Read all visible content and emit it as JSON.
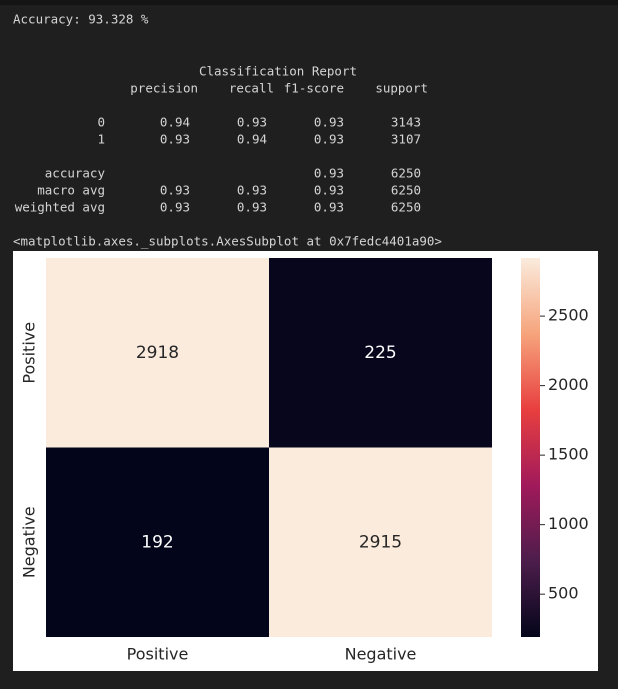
{
  "accuracy_line": "Accuracy: 93.328 %",
  "report": {
    "title": "Classification Report",
    "columns": [
      "precision",
      "recall",
      "f1-score",
      "support"
    ],
    "rows": [
      {
        "label": "0",
        "cells": {
          "precision": "0.94",
          "recall": "0.93",
          "f1-score": "0.93",
          "support": "3143"
        }
      },
      {
        "label": "1",
        "cells": {
          "precision": "0.93",
          "recall": "0.94",
          "f1-score": "0.93",
          "support": "3107"
        }
      },
      {
        "label": "accuracy",
        "cells": {
          "f1-score": "0.93",
          "support": "6250"
        }
      },
      {
        "label": "macro avg",
        "cells": {
          "precision": "0.93",
          "recall": "0.93",
          "f1-score": "0.93",
          "support": "6250"
        }
      },
      {
        "label": "weighted avg",
        "cells": {
          "precision": "0.93",
          "recall": "0.93",
          "f1-score": "0.93",
          "support": "6250"
        }
      }
    ]
  },
  "repr": "<matplotlib.axes._subplots.AxesSubplot at 0x7fedc4401a90>",
  "chart_data": {
    "type": "heatmap",
    "x_categories": [
      "Positive",
      "Negative"
    ],
    "y_categories": [
      "Positive",
      "Negative"
    ],
    "values": [
      [
        2918,
        225
      ],
      [
        192,
        2915
      ]
    ],
    "colormap": "rocket",
    "colorbar_lim": [
      192,
      2918
    ],
    "colorbar_ticks": [
      500,
      1000,
      1500,
      2000,
      2500
    ]
  }
}
